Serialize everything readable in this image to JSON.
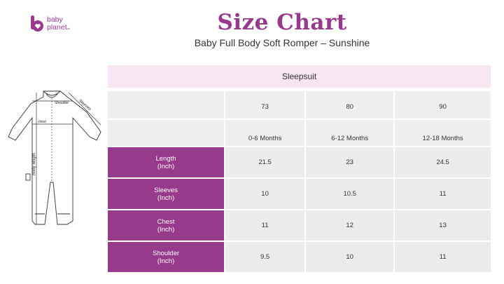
{
  "logo": {
    "line1": "baby",
    "line2": "planet",
    "suffix": "pk"
  },
  "title": "Size Chart",
  "subtitle": "Baby Full Body Soft Romper – Sunshine",
  "diagram_labels": {
    "shoulder": "Shoulder",
    "sleeves": "Sleeves",
    "chest": "chest",
    "body_length": "Body length"
  },
  "table": {
    "heading": "Sleepsuit",
    "sizes": [
      "73",
      "80",
      "90"
    ],
    "ages": [
      "0-6 Months",
      "6-12 Months",
      "12-18 Months"
    ],
    "rows": [
      {
        "label": "Length",
        "unit": "(Inch)",
        "values": [
          "21.5",
          "23",
          "24.5"
        ]
      },
      {
        "label": "Sleeves",
        "unit": "(Inch)",
        "values": [
          "10",
          "10.5",
          "11"
        ]
      },
      {
        "label": "Chest",
        "unit": "(Inch)",
        "values": [
          "11",
          "12",
          "13"
        ]
      },
      {
        "label": "Shoulder",
        "unit": "(Inch)",
        "values": [
          "9.5",
          "10",
          "11"
        ]
      }
    ]
  },
  "colors": {
    "accent": "#973a8b",
    "header_bg": "#f8e7f2",
    "cell_bg": "#efefef"
  }
}
